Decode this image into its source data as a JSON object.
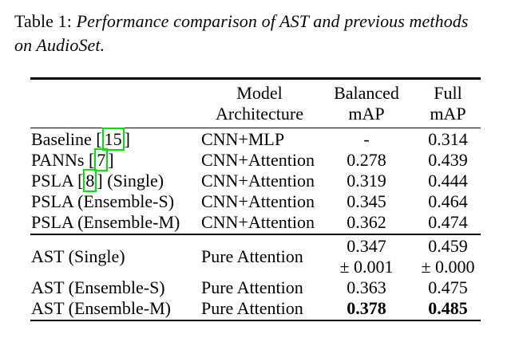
{
  "caption": {
    "prefix": "Table 1: ",
    "italic_line1": "Performance comparison of AST and previous methods",
    "italic_line2": "on AudioSet."
  },
  "colors": {
    "citation_box": "#00e206",
    "text": "#060606"
  },
  "table": {
    "header": {
      "model_architecture": [
        "Model",
        "Architecture"
      ],
      "balanced_map": [
        "Balanced",
        "mAP"
      ],
      "full_map": [
        "Full",
        "mAP"
      ]
    },
    "section1": [
      {
        "method_pre": "Baseline [",
        "cite": "15",
        "method_post": "]",
        "arch": "CNN+MLP",
        "balanced": "-",
        "full": "0.314"
      },
      {
        "method_pre": "PANNs [",
        "cite": "7",
        "method_post": "]",
        "arch": "CNN+Attention",
        "balanced": "0.278",
        "full": "0.439"
      },
      {
        "method_pre": "PSLA [",
        "cite": "8",
        "method_post": "] (Single)",
        "arch": "CNN+Attention",
        "balanced": "0.319",
        "full": "0.444"
      },
      {
        "method": "PSLA (Ensemble-S)",
        "arch": "CNN+Attention",
        "balanced": "0.345",
        "full": "0.464"
      },
      {
        "method": "PSLA (Ensemble-M)",
        "arch": "CNN+Attention",
        "balanced": "0.362",
        "full": "0.474"
      }
    ],
    "section2": [
      {
        "method": "AST (Single)",
        "arch": "Pure Attention",
        "balanced_line1": "0.347",
        "balanced_line2": "± 0.001",
        "full_line1": "0.459",
        "full_line2": "± 0.000"
      },
      {
        "method": "AST (Ensemble-S)",
        "arch": "Pure Attention",
        "balanced": "0.363",
        "full": "0.475"
      },
      {
        "method": "AST (Ensemble-M)",
        "arch": "Pure Attention",
        "balanced": "0.378",
        "full": "0.485"
      }
    ]
  }
}
